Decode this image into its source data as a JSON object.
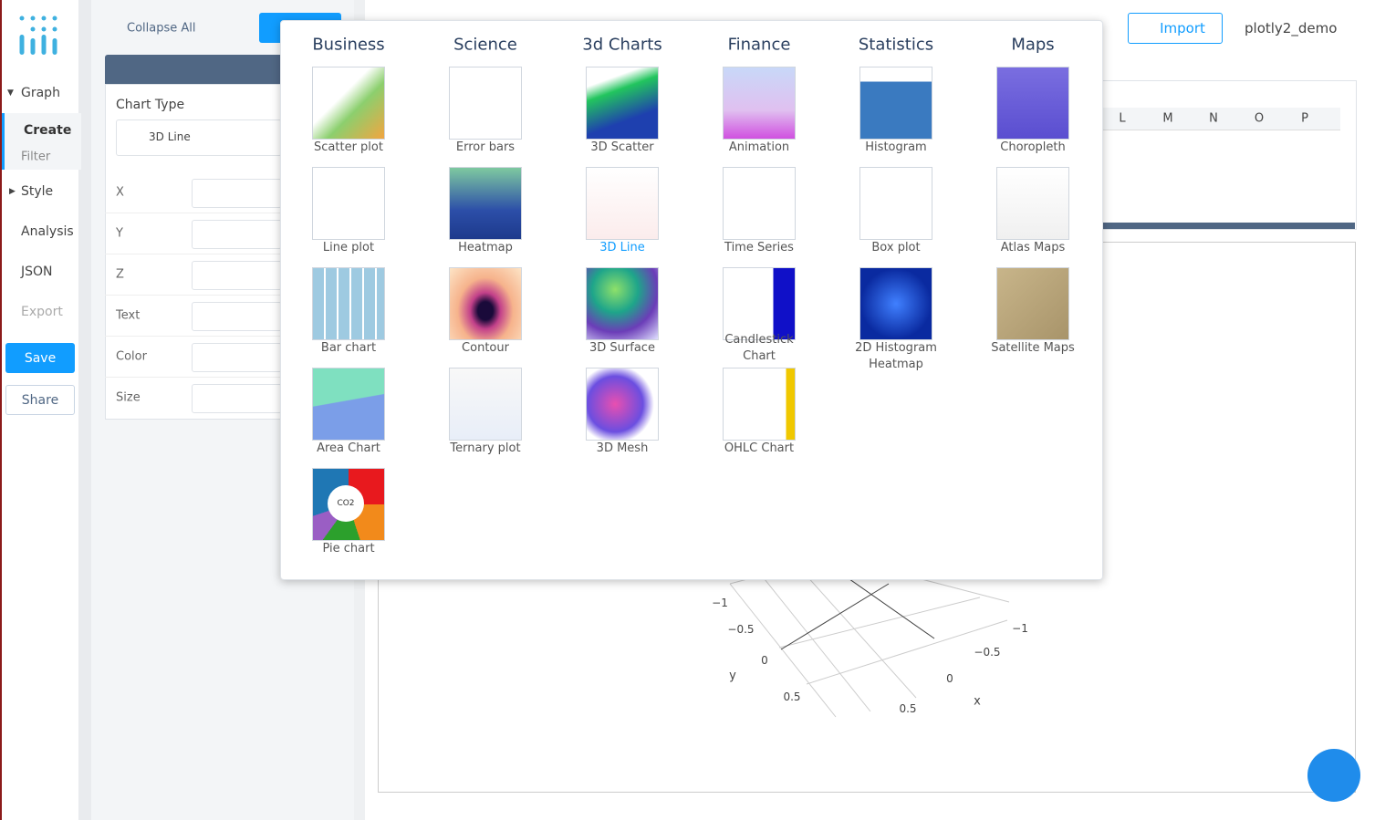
{
  "nav": {
    "items": [
      "Graph",
      "Create",
      "Filter",
      "Style",
      "Analysis",
      "JSON",
      "Export"
    ],
    "save": "Save",
    "share": "Share"
  },
  "panel": {
    "collapse": "Collapse All",
    "chart_type_label": "Chart Type",
    "chart_type_value": "3D Line",
    "fields": [
      "X",
      "Y",
      "Z",
      "Text",
      "Color",
      "Size"
    ]
  },
  "header": {
    "import": "Import",
    "user": "plotly2_demo"
  },
  "grid": {
    "columns": [
      "L",
      "M",
      "N",
      "O",
      "P"
    ]
  },
  "chart_menu": {
    "groups": [
      {
        "title": "Business",
        "items": [
          "Scatter plot",
          "Line plot",
          "Bar chart",
          "Area Chart",
          "Pie chart"
        ]
      },
      {
        "title": "Science",
        "items": [
          "Error bars",
          "Heatmap",
          "Contour",
          "Ternary plot"
        ]
      },
      {
        "title": "3d Charts",
        "items": [
          "3D Scatter",
          "3D Line",
          "3D Surface",
          "3D Mesh"
        ]
      },
      {
        "title": "Finance",
        "items": [
          "Animation",
          "Time Series",
          "Candlestick Chart",
          "OHLC Chart"
        ]
      },
      {
        "title": "Statistics",
        "items": [
          "Histogram",
          "Box plot",
          "2D Histogram Heatmap"
        ]
      },
      {
        "title": "Maps",
        "items": [
          "Choropleth",
          "Atlas Maps",
          "Satellite Maps"
        ]
      }
    ],
    "pie_thumb_text": "CO2"
  },
  "plot": {
    "y_ticks": [
      "−1",
      "−0.5",
      "0",
      "0.5"
    ],
    "y_label": "y",
    "x_ticks": [
      "−1",
      "−0.5",
      "0",
      "0.5"
    ],
    "x_label": "x"
  }
}
